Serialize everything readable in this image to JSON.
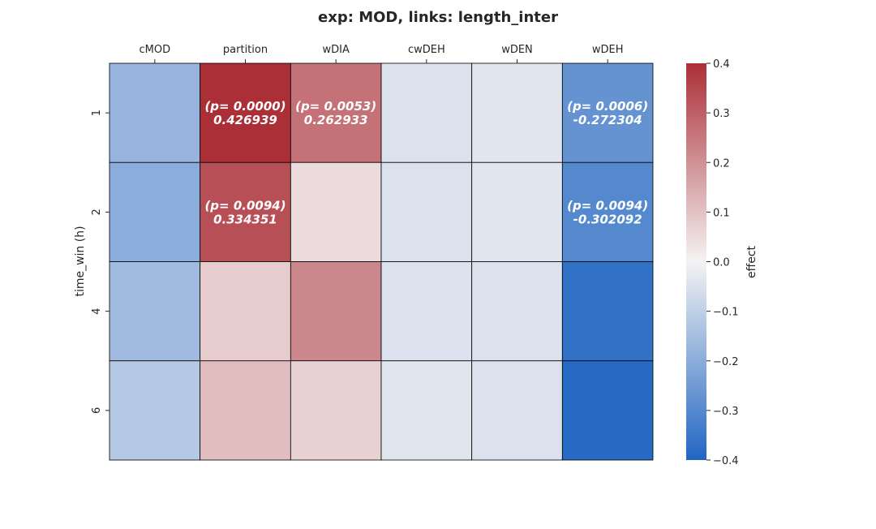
{
  "chart_data": {
    "type": "heatmap",
    "title": "exp: MOD, links: length_inter",
    "xlabel": "",
    "ylabel": "time_win (h)",
    "x_categories": [
      "cMOD",
      "partition",
      "wDIA",
      "cwDEH",
      "wDEN",
      "wDEH"
    ],
    "y_categories": [
      "1",
      "2",
      "4",
      "6"
    ],
    "values": [
      [
        -0.18,
        0.426939,
        0.262933,
        -0.05,
        -0.04,
        -0.272304
      ],
      [
        -0.2,
        0.334351,
        0.05,
        -0.05,
        -0.04,
        -0.302092
      ],
      [
        -0.16,
        0.08,
        0.22,
        -0.05,
        -0.05,
        -0.37
      ],
      [
        -0.12,
        0.11,
        0.07,
        -0.04,
        -0.05,
        -0.39
      ]
    ],
    "annotations": [
      {
        "row": 0,
        "col": 1,
        "line1": "(p= 0.0000)",
        "line2": "0.426939"
      },
      {
        "row": 0,
        "col": 2,
        "line1": "(p= 0.0053)",
        "line2": "0.262933"
      },
      {
        "row": 0,
        "col": 5,
        "line1": "(p= 0.0006)",
        "line2": "-0.272304"
      },
      {
        "row": 1,
        "col": 1,
        "line1": "(p= 0.0094)",
        "line2": "0.334351"
      },
      {
        "row": 1,
        "col": 5,
        "line1": "(p= 0.0094)",
        "line2": "-0.302092"
      }
    ],
    "colorbar": {
      "label": "effect",
      "range": [
        -0.4,
        0.4
      ],
      "ticks": [
        "0.4",
        "0.3",
        "0.2",
        "0.1",
        "0.0",
        "−0.1",
        "−0.2",
        "−0.3",
        "−0.4"
      ]
    },
    "colormap": {
      "negative_end": "#2166c2",
      "center": "#f5f3f3",
      "positive_end": "#ab2f37"
    },
    "x_ticks_position": "top",
    "grid": false
  }
}
